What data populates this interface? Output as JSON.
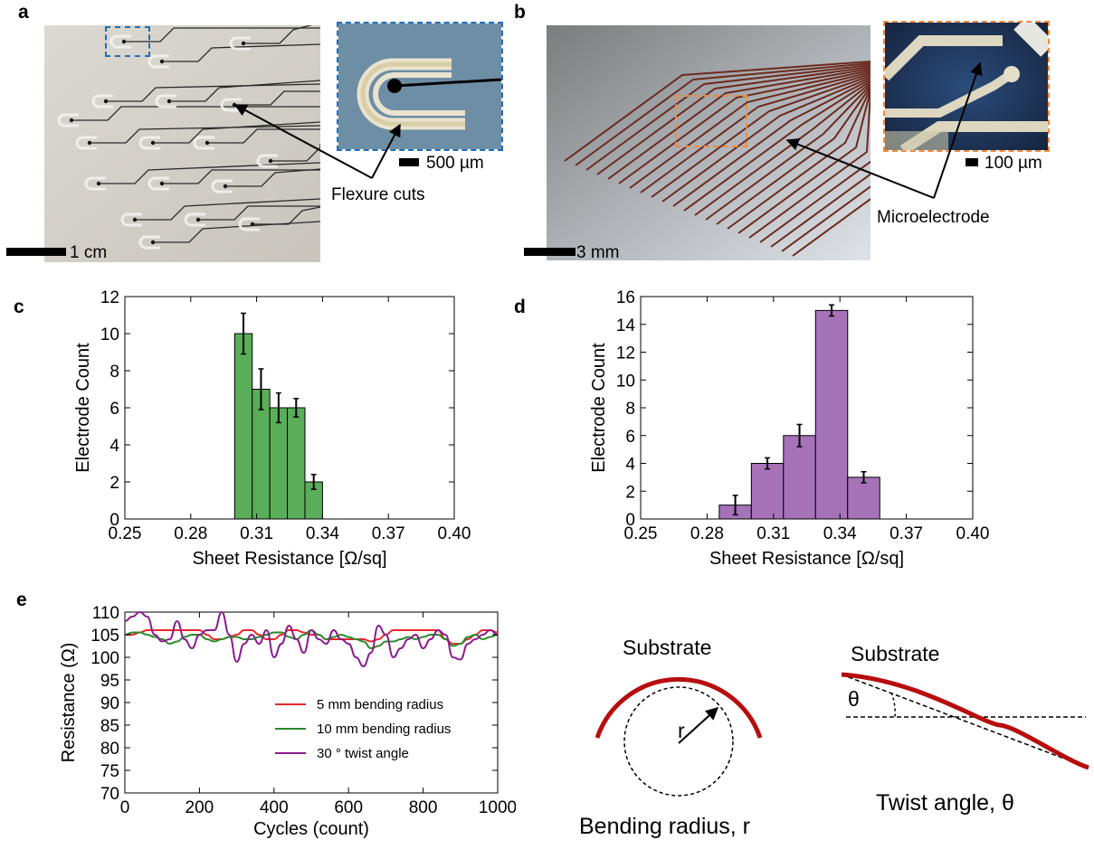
{
  "panels": {
    "a": "a",
    "b": "b",
    "c": "c",
    "d": "d",
    "e": "e"
  },
  "panel_a": {
    "scale_main": "1 cm",
    "scale_inset": "500 µm",
    "annotation": "Flexure cuts"
  },
  "panel_b": {
    "scale_main": "3 mm",
    "scale_inset": "100 µm",
    "annotation": "Microelectrode"
  },
  "diagrams": {
    "bend_substrate": "Substrate",
    "bend_r": "r",
    "bend_caption": "Bending radius, r",
    "twist_substrate": "Substrate",
    "twist_theta": "θ",
    "twist_caption": "Twist angle, θ"
  },
  "colors": {
    "green": "#5aae5a",
    "purple": "#a673b9",
    "red": "#e8262a",
    "dark_green": "#2a8a2a",
    "dark_purple": "#8b1c8f",
    "substrate": "#b80d0d"
  },
  "chart_data": [
    {
      "id": "c",
      "type": "bar",
      "xlabel": "Sheet Resistance [Ω/sq]",
      "ylabel": "Electrode Count",
      "xlim": [
        0.25,
        0.4
      ],
      "ylim": [
        0,
        12
      ],
      "xticks": [
        "0.25",
        "0.28",
        "0.31",
        "0.34",
        "0.37",
        "0.40"
      ],
      "yticks": [
        "0",
        "2",
        "4",
        "6",
        "8",
        "10",
        "12"
      ],
      "bin_edges": [
        0.3,
        0.308,
        0.316,
        0.324,
        0.332,
        0.34
      ],
      "values": [
        10,
        7,
        6,
        6,
        2
      ],
      "errors": [
        1.1,
        1.1,
        0.8,
        0.5,
        0.4
      ]
    },
    {
      "id": "d",
      "type": "bar",
      "xlabel": "Sheet Resistance [Ω/sq]",
      "ylabel": "Electrode Count",
      "xlim": [
        0.25,
        0.4
      ],
      "ylim": [
        0,
        16
      ],
      "xticks": [
        "0.25",
        "0.28",
        "0.31",
        "0.34",
        "0.37",
        "0.40"
      ],
      "yticks": [
        "0",
        "2",
        "4",
        "6",
        "8",
        "10",
        "12",
        "14",
        "16"
      ],
      "bin_edges": [
        0.2855,
        0.3,
        0.3145,
        0.329,
        0.3435,
        0.358
      ],
      "values": [
        1,
        4,
        6,
        15,
        3
      ],
      "errors": [
        0.7,
        0.4,
        0.8,
        0.4,
        0.4
      ]
    },
    {
      "id": "e",
      "type": "line",
      "xlabel": "Cycles (count)",
      "ylabel": "Resistance (Ω)",
      "xlim": [
        0,
        1000
      ],
      "ylim": [
        70,
        110
      ],
      "xticks": [
        "0",
        "200",
        "400",
        "600",
        "800",
        "1000"
      ],
      "yticks": [
        "70",
        "75",
        "80",
        "85",
        "90",
        "95",
        "100",
        "105",
        "110"
      ],
      "legend": "lower-right",
      "series": [
        {
          "name": "5 mm bending radius",
          "x": [
            0,
            20,
            40,
            60,
            80,
            100,
            120,
            140,
            160,
            180,
            200,
            220,
            240,
            260,
            280,
            300,
            320,
            340,
            360,
            380,
            400,
            420,
            440,
            460,
            480,
            500,
            520,
            540,
            560,
            580,
            600,
            620,
            640,
            660,
            680,
            700,
            720,
            740,
            760,
            780,
            800,
            820,
            840,
            860,
            880,
            900,
            920,
            940,
            960,
            980,
            1000
          ],
          "y": [
            105,
            105,
            105.5,
            106,
            106,
            106,
            106,
            106,
            106,
            106,
            106,
            105,
            104,
            104,
            104.5,
            105,
            106,
            106,
            105,
            104,
            104,
            105,
            106,
            106,
            105.5,
            105,
            105,
            104,
            104,
            104,
            104,
            104,
            104,
            103.5,
            104,
            105,
            106,
            106,
            106,
            106,
            106,
            106,
            106,
            104,
            103,
            103,
            104,
            105,
            106,
            106,
            105.5
          ]
        },
        {
          "name": "10 mm bending radius",
          "x": [
            0,
            20,
            40,
            60,
            80,
            100,
            120,
            140,
            160,
            180,
            200,
            220,
            240,
            260,
            280,
            300,
            320,
            340,
            360,
            380,
            400,
            420,
            440,
            460,
            480,
            500,
            520,
            540,
            560,
            580,
            600,
            620,
            640,
            660,
            680,
            700,
            720,
            740,
            760,
            780,
            800,
            820,
            840,
            860,
            880,
            900,
            920,
            940,
            960,
            980,
            1000
          ],
          "y": [
            105,
            105.5,
            105.5,
            105,
            104.5,
            104,
            103,
            103.5,
            104.5,
            105,
            105,
            104,
            103.5,
            104,
            104.5,
            104.5,
            104,
            104,
            104.5,
            105,
            105.5,
            105.5,
            104.5,
            104,
            105,
            106,
            105,
            104,
            104.5,
            105,
            104.5,
            104,
            103.5,
            102,
            102.5,
            103.5,
            103.5,
            104,
            104.5,
            104,
            104.5,
            105,
            105,
            104,
            102.5,
            103,
            104.5,
            105,
            104,
            104.5,
            105
          ]
        },
        {
          "name": "30 ° twist angle",
          "x": [
            0,
            20,
            40,
            60,
            80,
            100,
            120,
            140,
            160,
            180,
            200,
            220,
            240,
            260,
            280,
            300,
            320,
            340,
            360,
            380,
            400,
            420,
            440,
            460,
            480,
            500,
            520,
            540,
            560,
            580,
            600,
            620,
            640,
            660,
            680,
            700,
            720,
            740,
            760,
            780,
            800,
            820,
            840,
            860,
            880,
            900,
            920,
            940,
            960,
            980,
            1000
          ],
          "y": [
            108,
            109,
            110,
            109,
            105,
            103.5,
            104,
            108,
            104,
            102,
            105,
            106,
            106,
            110,
            105,
            99,
            103,
            105,
            103,
            106,
            100,
            103,
            107,
            104,
            101,
            106,
            104,
            103,
            106,
            104,
            103,
            100,
            98,
            101,
            107,
            105,
            100,
            102,
            104,
            105,
            102,
            104,
            106,
            105,
            100,
            99.5,
            103,
            104,
            105,
            106,
            105
          ]
        }
      ]
    }
  ]
}
